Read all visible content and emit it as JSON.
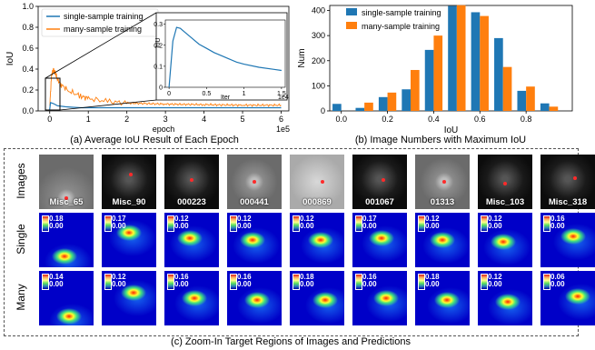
{
  "panel_a": {
    "caption": "(a) Average IoU Result of Each Epoch",
    "legend": [
      "single-sample training",
      "many-sample training"
    ],
    "colors": {
      "single": "#1f77b4",
      "many": "#ff7f0e"
    }
  },
  "panel_b": {
    "caption": "(b) Image Numbers with Maximum IoU",
    "legend": [
      "single-sample training",
      "many-sample training"
    ]
  },
  "panel_c": {
    "caption": "(c) Zoom-In Target Regions of Images and Predictions",
    "row_labels": [
      "Images",
      "Single",
      "Many"
    ],
    "image_names": [
      "Misc_65",
      "Misc_90",
      "000223",
      "000441",
      "000869",
      "001067",
      "01313",
      "Misc_103",
      "Misc_318"
    ],
    "single_max": [
      "0.18",
      "0.17",
      "0.12",
      "0.12",
      "0.12",
      "0.17",
      "0.12",
      "0.12",
      "0.16"
    ],
    "many_max": [
      "0.14",
      "0.12",
      "0.16",
      "0.16",
      "0.18",
      "0.16",
      "0.18",
      "0.12",
      "0.06"
    ],
    "min_value": "0.00"
  },
  "chart_data": [
    {
      "type": "line",
      "ylabel": "IoU",
      "xlabel": "epoch",
      "x_multiplier": "1e5",
      "xlim": [
        -0.3,
        6.2
      ],
      "ylim": [
        0,
        1.0
      ],
      "xticks": [
        "0",
        "1",
        "2",
        "3",
        "4",
        "5",
        "6"
      ],
      "yticks": [
        "0.0",
        "0.2",
        "0.4",
        "0.6",
        "0.8",
        "1.0"
      ],
      "series": [
        {
          "name": "single-sample training",
          "x": [
            0,
            0.02,
            0.1,
            0.2,
            0.4,
            0.6,
            0.8,
            1,
            2,
            3,
            4,
            5,
            6
          ],
          "y": [
            0.01,
            0.08,
            0.07,
            0.05,
            0.04,
            0.035,
            0.03,
            0.03,
            0.03,
            0.03,
            0.03,
            0.03,
            0.03
          ]
        },
        {
          "name": "many-sample training",
          "x": [
            0,
            0.05,
            0.1,
            0.15,
            0.2,
            0.3,
            0.5,
            0.8,
            1,
            1.5,
            2,
            3,
            4,
            5,
            6
          ],
          "y": [
            0.05,
            0.35,
            0.39,
            0.36,
            0.3,
            0.25,
            0.19,
            0.14,
            0.12,
            0.09,
            0.075,
            0.065,
            0.06,
            0.055,
            0.055
          ]
        }
      ],
      "inset": {
        "xlabel": "Iter",
        "ylabel": "IoU",
        "x_multiplier": "1e4",
        "xlim": [
          -0.05,
          1.55
        ],
        "ylim": [
          0,
          0.32
        ],
        "xticks": [
          "0",
          "0.5",
          "1",
          "1.5"
        ],
        "yticks": [
          "0",
          "0.1",
          "0.2",
          "0.3"
        ],
        "x": [
          0,
          0.05,
          0.1,
          0.15,
          0.2,
          0.3,
          0.4,
          0.5,
          0.6,
          0.7,
          0.8,
          0.9,
          1.0,
          1.2,
          1.4,
          1.5
        ],
        "y": [
          0.0,
          0.22,
          0.285,
          0.28,
          0.265,
          0.235,
          0.205,
          0.185,
          0.165,
          0.15,
          0.135,
          0.12,
          0.11,
          0.095,
          0.085,
          0.08
        ]
      }
    },
    {
      "type": "bar",
      "xlabel": "IoU",
      "ylabel": "Num",
      "xlim": [
        -0.05,
        1.0
      ],
      "ylim": [
        0,
        420
      ],
      "xticks": [
        "0.0",
        "0.2",
        "0.4",
        "0.6",
        "0.8"
      ],
      "yticks": [
        "0",
        "100",
        "200",
        "300",
        "400"
      ],
      "categories": [
        0.0,
        0.1,
        0.2,
        0.3,
        0.4,
        0.5,
        0.6,
        0.7,
        0.8,
        0.9
      ],
      "series": [
        {
          "name": "single-sample training",
          "values": [
            28,
            12,
            55,
            86,
            243,
            418,
            393,
            290,
            80,
            30
          ]
        },
        {
          "name": "many-sample training",
          "values": [
            0,
            33,
            73,
            163,
            300,
            421,
            378,
            175,
            97,
            17
          ]
        }
      ]
    }
  ]
}
